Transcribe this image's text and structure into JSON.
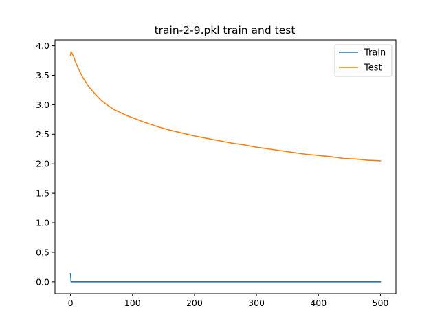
{
  "chart_data": {
    "type": "line",
    "title": "train-2-9.pkl train and test",
    "xlabel": "",
    "ylabel": "",
    "xlim": [
      -25,
      525
    ],
    "ylim": [
      -0.2,
      4.1
    ],
    "xticks": [
      0,
      100,
      200,
      300,
      400,
      500
    ],
    "yticks": [
      0.0,
      0.5,
      1.0,
      1.5,
      2.0,
      2.5,
      3.0,
      3.5,
      4.0
    ],
    "xtick_labels": [
      "0",
      "100",
      "200",
      "300",
      "400",
      "500"
    ],
    "ytick_labels": [
      "0.0",
      "0.5",
      "1.0",
      "1.5",
      "2.0",
      "2.5",
      "3.0",
      "3.5",
      "4.0"
    ],
    "grid": false,
    "legend_position": "top-right",
    "series": [
      {
        "name": "Train",
        "color": "#1f77b4",
        "points": [
          [
            0,
            0.14
          ],
          [
            1,
            0.0
          ],
          [
            500,
            0.0
          ]
        ]
      },
      {
        "name": "Test",
        "color": "#ff7f0e",
        "points": [
          [
            0,
            3.84
          ],
          [
            1,
            3.9
          ],
          [
            3,
            3.86
          ],
          [
            5,
            3.82
          ],
          [
            8,
            3.73
          ],
          [
            12,
            3.63
          ],
          [
            20,
            3.46
          ],
          [
            30,
            3.3
          ],
          [
            40,
            3.18
          ],
          [
            50,
            3.07
          ],
          [
            60,
            2.99
          ],
          [
            70,
            2.92
          ],
          [
            80,
            2.87
          ],
          [
            90,
            2.82
          ],
          [
            100,
            2.78
          ],
          [
            120,
            2.7
          ],
          [
            140,
            2.63
          ],
          [
            160,
            2.57
          ],
          [
            180,
            2.52
          ],
          [
            200,
            2.47
          ],
          [
            220,
            2.43
          ],
          [
            240,
            2.39
          ],
          [
            260,
            2.35
          ],
          [
            280,
            2.32
          ],
          [
            300,
            2.28
          ],
          [
            320,
            2.25
          ],
          [
            340,
            2.22
          ],
          [
            360,
            2.19
          ],
          [
            380,
            2.16
          ],
          [
            400,
            2.14
          ],
          [
            420,
            2.12
          ],
          [
            440,
            2.09
          ],
          [
            460,
            2.08
          ],
          [
            480,
            2.06
          ],
          [
            500,
            2.05
          ]
        ]
      }
    ]
  }
}
